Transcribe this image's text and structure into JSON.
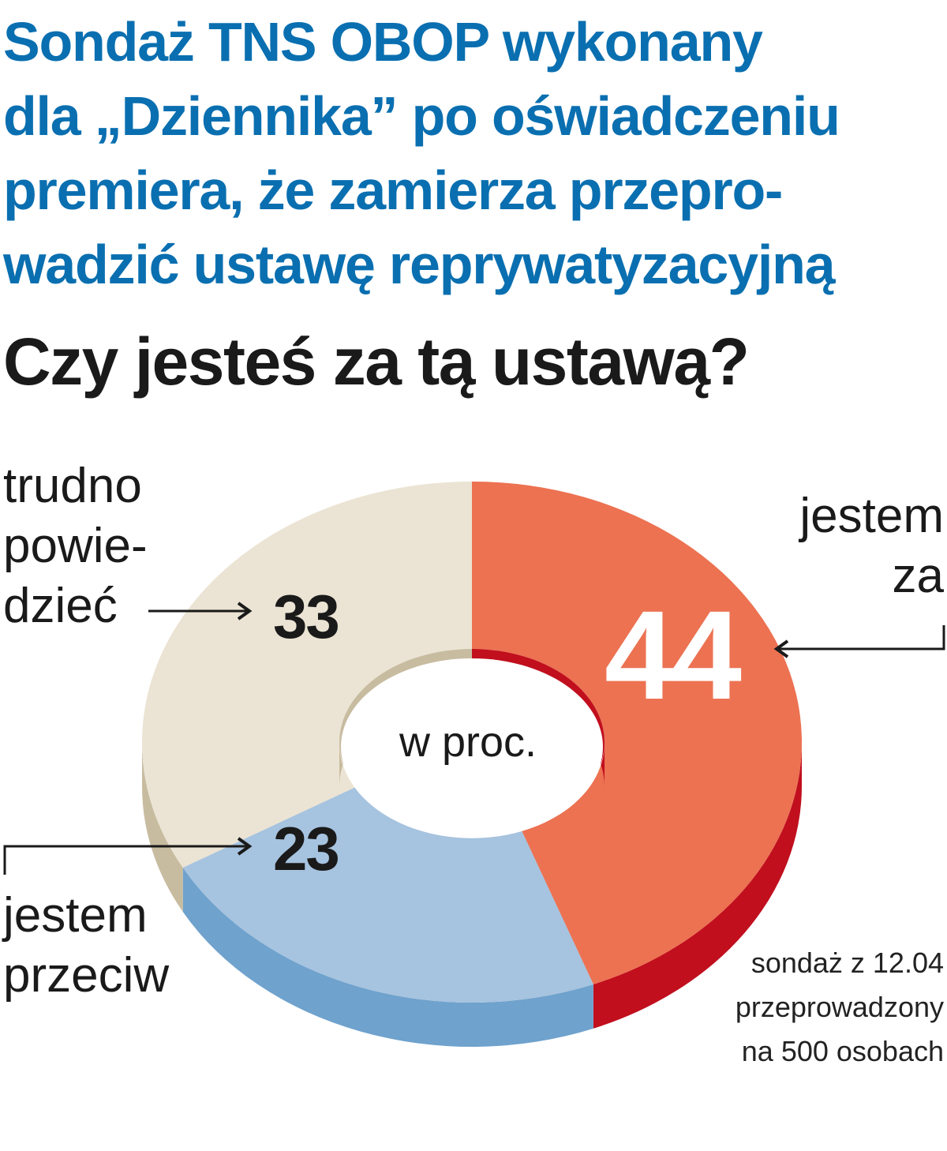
{
  "headline": {
    "lines": [
      "Sondaż TNS OBOP wykonany",
      "dla „Dziennika” po oświadczeniu",
      "premiera, że zamierza przepro-",
      "wadzić ustawę reprywatyzacyjną"
    ]
  },
  "question": "Czy jesteś za tą ustawą?",
  "chart_data": {
    "type": "pie",
    "title": "Czy jesteś za tą ustawą?",
    "unit_label": "w proc.",
    "series": [
      {
        "name": "Czy jesteś za tą ustawą?",
        "slices": [
          {
            "label_lines": [
              "jestem",
              "za"
            ],
            "value": 44,
            "display": "44",
            "color": "#ec7252",
            "side_color": "#c10f1e"
          },
          {
            "label_lines": [
              "jestem",
              "przeciw"
            ],
            "value": 23,
            "display": "23",
            "color": "#a6c3df",
            "side_color": "#6fa2cd"
          },
          {
            "label_lines": [
              "trudno",
              "powie-",
              "dzieć"
            ],
            "value": 33,
            "display": "33",
            "color": "#ebe4d4",
            "side_color": "#c8bca0"
          }
        ]
      }
    ]
  },
  "source_note": {
    "lines": [
      "sondaż z 12.04",
      "przeprowadzony",
      "na 500 osobach"
    ]
  }
}
